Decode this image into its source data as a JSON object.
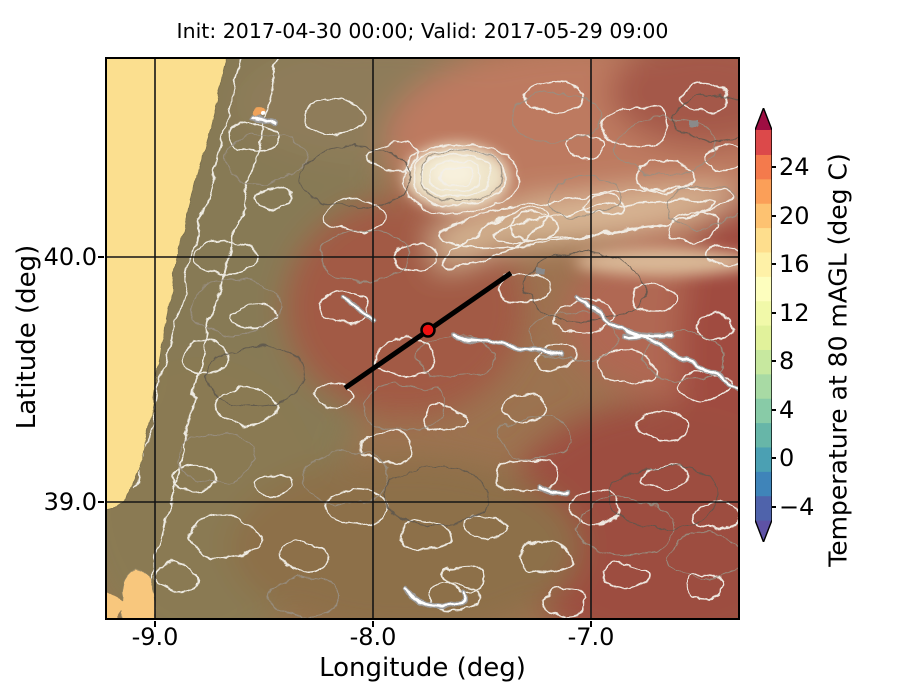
{
  "figure": {
    "title": "Init: 2017-04-30 00:00; Valid: 2017-05-29 09:00"
  },
  "axes": {
    "xlabel": "Longitude (deg)",
    "ylabel": "Latitude (deg)",
    "xtick_labels": [
      "-9.0",
      "-8.0",
      "-7.0"
    ],
    "ytick_labels": [
      "40.0",
      "39.0"
    ]
  },
  "colorbar": {
    "label": "Temperature at 80 mAGL (deg C)",
    "tick_labels": [
      "24",
      "20",
      "16",
      "12",
      "8",
      "4",
      "0",
      "−4"
    ],
    "segment_colors_bottom_to_top": [
      "#4f63ab",
      "#3f84b9",
      "#4ba0b3",
      "#67b6a8",
      "#88cba7",
      "#a8daa4",
      "#c7e89f",
      "#e1f29b",
      "#f1f9a9",
      "#fdfebe",
      "#fef1a7",
      "#fede8d",
      "#fdc271",
      "#fb9f58",
      "#f47a4c",
      "#dc494a"
    ],
    "arrow_bottom_color": "#5e52a5",
    "arrow_top_color": "#9e0e42"
  },
  "map": {
    "ocean_color": "#fbdf8f",
    "lagoon_color": "#f8c77d",
    "marker_color": "#ee1010",
    "cross_section_color": "#000000",
    "contour_color": "#f3f0e9"
  },
  "chart_data": {
    "type": "heatmap",
    "title": "Init: 2017-04-30 00:00; Valid: 2017-05-29 09:00",
    "xlabel": "Longitude (deg)",
    "ylabel": "Latitude (deg)",
    "xlim": [
      -9.23,
      -6.32
    ],
    "ylim": [
      38.52,
      40.82
    ],
    "xticks": [
      -9.0,
      -8.0,
      -7.0
    ],
    "yticks": [
      39.0,
      40.0
    ],
    "grid": true,
    "field": "Temperature at 80 mAGL (deg C)",
    "colormap": "Spectral_r",
    "levels_step": 2,
    "colorbar_ticks": [
      -4,
      0,
      4,
      8,
      12,
      16,
      20,
      24
    ],
    "colorbar_range": [
      -6,
      26
    ],
    "colorbar_extend": "both",
    "station_marker": {
      "lon": -7.75,
      "lat": 39.7
    },
    "cross_section_line": {
      "from": {
        "lon": -8.13,
        "lat": 39.47
      },
      "to": {
        "lon": -7.37,
        "lat": 39.93
      }
    },
    "notable_features": [
      "Atlantic Ocean along west edge shown as uniform pale yellow (~12-14 C)",
      "Cool olive-brown coastal strip of Portugal, warmer brown interior",
      "Hot brick-red areas in the east and northeast (~22-26 C)",
      "Cold pale spot over Serra da Estrela mountains",
      "Dense white terrain-following contour lines over whole land area",
      "Black cross-section line with red station marker near lon -7.75, lat 39.7"
    ]
  }
}
